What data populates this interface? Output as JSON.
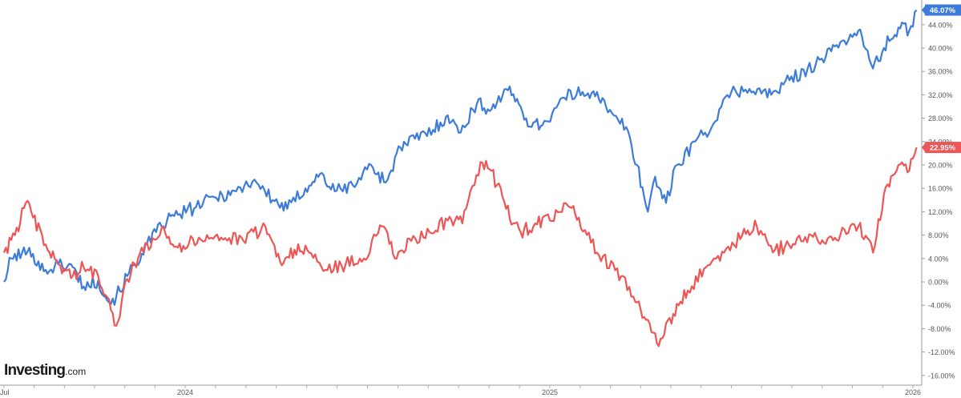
{
  "chart_data": {
    "type": "line",
    "y_axis_unit": "%",
    "ylim": [
      -17.5,
      49
    ],
    "y_ticks": [
      "44.00%",
      "40.00%",
      "36.00%",
      "32.00%",
      "28.00%",
      "24.00%",
      "20.00%",
      "16.00%",
      "12.00%",
      "8.00%",
      "4.00%",
      "0.00%",
      "-4.00%",
      "-8.00%",
      "-12.00%",
      "-16.00%"
    ],
    "x_ticks": [
      "Jul",
      "2024",
      "2025",
      "2026"
    ],
    "series": [
      {
        "color": "#3d7bd9",
        "last_value_label": "46.07%",
        "values": [
          [
            2023.5,
            0.0
          ],
          [
            2023.52,
            4.0
          ],
          [
            2023.55,
            5.0
          ],
          [
            2023.58,
            4.8
          ],
          [
            2023.61,
            1.8
          ],
          [
            2023.65,
            3.0
          ],
          [
            2023.69,
            2.5
          ],
          [
            2023.72,
            -0.8
          ],
          [
            2023.76,
            0.2
          ],
          [
            2023.79,
            -3.5
          ],
          [
            2023.81,
            -2.5
          ],
          [
            2023.84,
            1.0
          ],
          [
            2023.88,
            4.8
          ],
          [
            2023.92,
            8.5
          ],
          [
            2023.95,
            10.5
          ],
          [
            2023.98,
            11.5
          ],
          [
            2024.03,
            12.8
          ],
          [
            2024.08,
            14.5
          ],
          [
            2024.14,
            15.5
          ],
          [
            2024.19,
            17.5
          ],
          [
            2024.24,
            14.0
          ],
          [
            2024.28,
            12.5
          ],
          [
            2024.33,
            16.0
          ],
          [
            2024.37,
            18.5
          ],
          [
            2024.41,
            15.5
          ],
          [
            2024.46,
            16.5
          ],
          [
            2024.51,
            20.0
          ],
          [
            2024.55,
            17.0
          ],
          [
            2024.59,
            23.0
          ],
          [
            2024.63,
            24.5
          ],
          [
            2024.68,
            26.0
          ],
          [
            2024.72,
            28.5
          ],
          [
            2024.75,
            25.5
          ],
          [
            2024.8,
            30.5
          ],
          [
            2024.84,
            29.5
          ],
          [
            2024.88,
            33.0
          ],
          [
            2024.92,
            30.0
          ],
          [
            2024.95,
            26.5
          ],
          [
            2024.99,
            27.5
          ],
          [
            2025.04,
            31.5
          ],
          [
            2025.09,
            32.5
          ],
          [
            2025.13,
            32.5
          ],
          [
            2025.16,
            29.0
          ],
          [
            2025.21,
            26.5
          ],
          [
            2025.24,
            20.0
          ],
          [
            2025.27,
            12.0
          ],
          [
            2025.29,
            18.0
          ],
          [
            2025.32,
            13.5
          ],
          [
            2025.35,
            20.0
          ],
          [
            2025.4,
            24.0
          ],
          [
            2025.45,
            27.0
          ],
          [
            2025.5,
            32.5
          ],
          [
            2025.55,
            33.0
          ],
          [
            2025.61,
            32.0
          ],
          [
            2025.66,
            34.5
          ],
          [
            2025.71,
            36.5
          ],
          [
            2025.76,
            38.5
          ],
          [
            2025.8,
            41.0
          ],
          [
            2025.85,
            43.0
          ],
          [
            2025.89,
            36.5
          ],
          [
            2025.92,
            40.0
          ],
          [
            2025.96,
            43.5
          ],
          [
            2025.99,
            43.0
          ],
          [
            2026.01,
            46.5
          ]
        ]
      },
      {
        "color": "#ee5555",
        "last_value_label": "22.95%",
        "values": [
          [
            2023.5,
            5.0
          ],
          [
            2023.53,
            8.0
          ],
          [
            2023.56,
            13.5
          ],
          [
            2023.58,
            11.0
          ],
          [
            2023.62,
            5.5
          ],
          [
            2023.65,
            3.0
          ],
          [
            2023.69,
            1.0
          ],
          [
            2023.72,
            2.5
          ],
          [
            2023.76,
            1.0
          ],
          [
            2023.79,
            -3.0
          ],
          [
            2023.81,
            -7.5
          ],
          [
            2023.84,
            0.5
          ],
          [
            2023.87,
            4.0
          ],
          [
            2023.91,
            7.5
          ],
          [
            2023.94,
            9.5
          ],
          [
            2023.97,
            6.0
          ],
          [
            2024.01,
            6.5
          ],
          [
            2024.06,
            8.0
          ],
          [
            2024.11,
            7.5
          ],
          [
            2024.16,
            7.0
          ],
          [
            2024.22,
            9.5
          ],
          [
            2024.26,
            3.5
          ],
          [
            2024.3,
            5.5
          ],
          [
            2024.34,
            5.0
          ],
          [
            2024.39,
            2.0
          ],
          [
            2024.44,
            3.0
          ],
          [
            2024.49,
            4.0
          ],
          [
            2024.54,
            9.5
          ],
          [
            2024.58,
            4.0
          ],
          [
            2024.62,
            7.0
          ],
          [
            2024.67,
            8.5
          ],
          [
            2024.72,
            10.5
          ],
          [
            2024.76,
            10.0
          ],
          [
            2024.81,
            20.5
          ],
          [
            2024.84,
            19.0
          ],
          [
            2024.88,
            12.5
          ],
          [
            2024.92,
            8.5
          ],
          [
            2024.96,
            10.0
          ],
          [
            2025.0,
            10.5
          ],
          [
            2025.05,
            13.0
          ],
          [
            2025.08,
            11.0
          ],
          [
            2025.13,
            5.0
          ],
          [
            2025.18,
            2.0
          ],
          [
            2025.23,
            -2.5
          ],
          [
            2025.27,
            -6.5
          ],
          [
            2025.3,
            -11.0
          ],
          [
            2025.34,
            -5.5
          ],
          [
            2025.38,
            -1.5
          ],
          [
            2025.43,
            2.5
          ],
          [
            2025.48,
            5.0
          ],
          [
            2025.53,
            8.0
          ],
          [
            2025.57,
            9.5
          ],
          [
            2025.62,
            5.5
          ],
          [
            2025.67,
            6.5
          ],
          [
            2025.72,
            8.0
          ],
          [
            2025.76,
            6.5
          ],
          [
            2025.8,
            8.0
          ],
          [
            2025.85,
            9.5
          ],
          [
            2025.89,
            5.0
          ],
          [
            2025.92,
            15.0
          ],
          [
            2025.96,
            20.0
          ],
          [
            2025.99,
            19.0
          ],
          [
            2026.01,
            23.0
          ]
        ]
      }
    ]
  },
  "logo": {
    "brand": "Investing",
    "suffix": ".com"
  }
}
